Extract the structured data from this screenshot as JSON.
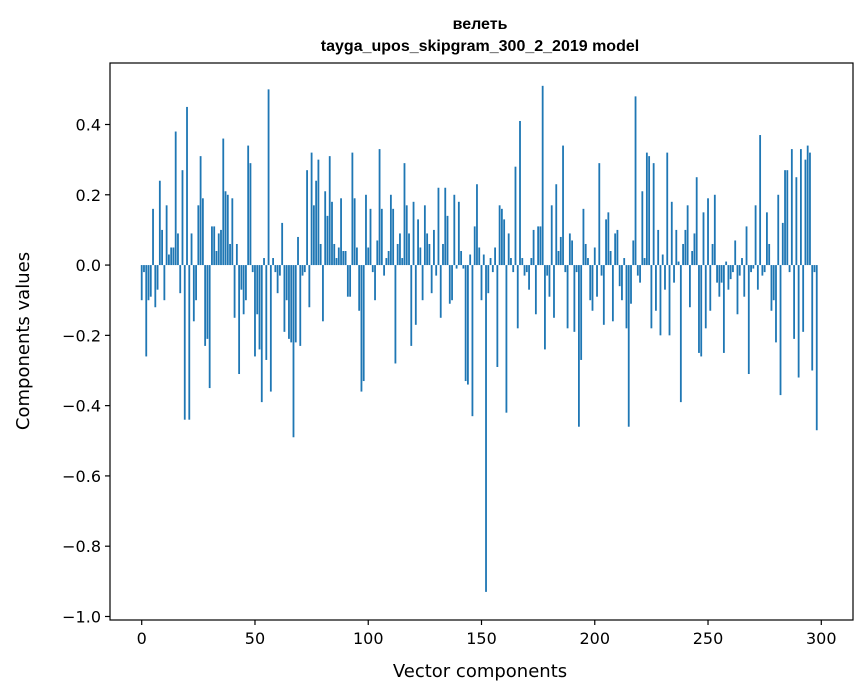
{
  "chart_data": {
    "type": "bar",
    "title_line1": "велеть",
    "title_line2": "tayga_upos_skipgram_300_2_2019 model",
    "xlabel": "Vector components",
    "ylabel": "Components values",
    "xlim": [
      -14,
      314
    ],
    "ylim": [
      -1.01,
      0.575
    ],
    "xticks": [
      0,
      50,
      100,
      150,
      200,
      250,
      300
    ],
    "yticks": [
      -1.0,
      -0.8,
      -0.6,
      -0.4,
      -0.2,
      0.0,
      0.2,
      0.4
    ],
    "ytick_labels": [
      "−1.0",
      "−0.8",
      "−0.6",
      "−0.4",
      "−0.2",
      "0.0",
      "0.2",
      "0.4"
    ],
    "grid": false,
    "bar_color": "#1f77b4",
    "values": [
      -0.1,
      -0.02,
      -0.26,
      -0.1,
      -0.09,
      0.16,
      -0.12,
      -0.07,
      0.24,
      0.1,
      -0.1,
      0.17,
      0.03,
      0.05,
      0.05,
      0.38,
      0.09,
      -0.08,
      0.27,
      -0.44,
      0.45,
      -0.44,
      0.09,
      -0.16,
      -0.1,
      0.17,
      0.31,
      0.19,
      -0.23,
      -0.21,
      -0.35,
      0.11,
      0.11,
      0.04,
      0.09,
      0.1,
      0.36,
      0.21,
      0.2,
      0.06,
      0.19,
      -0.15,
      0.06,
      -0.31,
      -0.07,
      -0.14,
      -0.1,
      0.34,
      0.29,
      -0.02,
      -0.26,
      -0.14,
      -0.24,
      -0.39,
      0.02,
      -0.27,
      0.5,
      -0.36,
      0.02,
      -0.02,
      -0.08,
      -0.03,
      0.12,
      -0.19,
      -0.1,
      -0.21,
      -0.22,
      -0.49,
      -0.22,
      0.08,
      -0.23,
      -0.03,
      -0.02,
      0.27,
      -0.12,
      0.32,
      0.17,
      0.24,
      0.3,
      0.06,
      -0.16,
      0.21,
      0.14,
      0.31,
      0.18,
      0.06,
      0.02,
      0.05,
      0.19,
      0.04,
      0.04,
      -0.09,
      -0.09,
      0.32,
      0.19,
      0.05,
      -0.13,
      -0.36,
      -0.33,
      0.2,
      0.05,
      0.16,
      -0.02,
      -0.1,
      0.07,
      0.33,
      0.16,
      -0.03,
      0.02,
      0.04,
      0.2,
      0.16,
      -0.28,
      0.06,
      0.09,
      0.02,
      0.29,
      0.17,
      0.09,
      -0.23,
      0.18,
      -0.17,
      0.13,
      0.05,
      -0.1,
      0.17,
      0.09,
      0.06,
      -0.08,
      0.1,
      -0.03,
      0.22,
      -0.15,
      0.06,
      0.22,
      0.14,
      -0.11,
      -0.1,
      0.2,
      -0.01,
      0.18,
      0.04,
      -0.01,
      -0.33,
      -0.34,
      0.03,
      -0.43,
      0.11,
      0.23,
      0.05,
      -0.1,
      0.03,
      -0.93,
      -0.08,
      0.02,
      -0.02,
      0.05,
      -0.29,
      0.17,
      0.16,
      0.13,
      -0.42,
      0.09,
      0.02,
      -0.02,
      0.28,
      -0.18,
      0.41,
      0.02,
      -0.03,
      -0.02,
      -0.07,
      0.02,
      0.1,
      -0.14,
      0.11,
      0.11,
      0.51,
      -0.24,
      -0.03,
      -0.09,
      0.17,
      -0.15,
      0.23,
      0.04,
      0.08,
      0.34,
      -0.02,
      -0.18,
      0.09,
      0.07,
      -0.19,
      -0.02,
      -0.46,
      -0.27,
      0.16,
      0.06,
      0.02,
      -0.1,
      -0.13,
      0.05,
      -0.09,
      0.29,
      -0.03,
      -0.17,
      0.13,
      0.15,
      0.04,
      -0.16,
      0.09,
      0.1,
      -0.06,
      -0.1,
      0.02,
      -0.18,
      -0.46,
      -0.11,
      0.07,
      0.48,
      -0.03,
      -0.05,
      0.21,
      0.02,
      0.32,
      0.31,
      -0.18,
      0.29,
      -0.13,
      0.1,
      -0.2,
      0.03,
      -0.07,
      0.32,
      -0.2,
      0.18,
      -0.05,
      0.1,
      0.01,
      -0.39,
      0.06,
      0.1,
      0.17,
      -0.12,
      0.04,
      0.09,
      0.25,
      -0.25,
      -0.26,
      0.15,
      -0.18,
      0.19,
      -0.13,
      0.06,
      0.2,
      -0.05,
      -0.09,
      -0.05,
      -0.25,
      0.01,
      -0.07,
      -0.04,
      -0.02,
      0.07,
      -0.14,
      -0.03,
      0.02,
      -0.09,
      0.11,
      -0.31,
      -0.02,
      -0.01,
      0.17,
      -0.07,
      0.37,
      -0.03,
      -0.02,
      0.15,
      0.06,
      -0.13,
      -0.1,
      -0.22,
      0.2,
      -0.37,
      0.12,
      0.27,
      0.27,
      -0.02,
      0.33,
      -0.21,
      0.25,
      -0.32,
      0.33,
      -0.19,
      0.3,
      0.34,
      0.32,
      -0.3,
      -0.02,
      -0.47,
      0.0
    ]
  }
}
